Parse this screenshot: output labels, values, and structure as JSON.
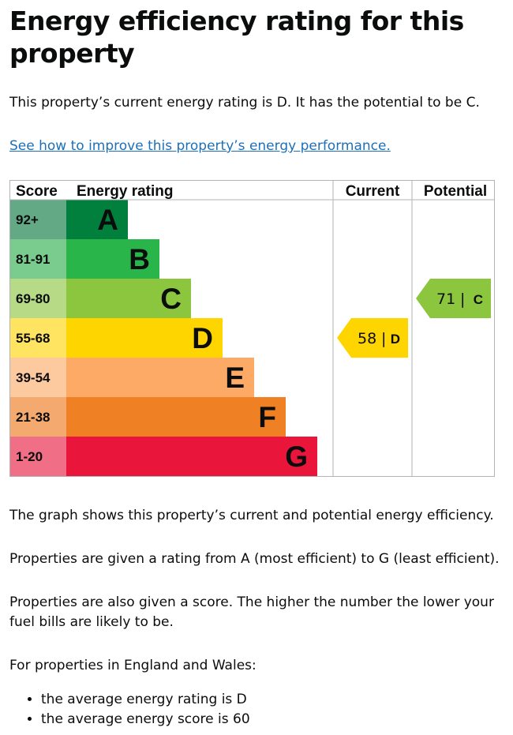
{
  "page": {
    "title": "Energy efficiency rating for this property",
    "intro": "This property’s current energy rating is D. It has the potential to be C.",
    "improve_link": "See how to improve this property’s energy performance.",
    "para1": "The graph shows this property’s current and potential energy efficiency.",
    "para2": "Properties are given a rating from A (most efficient) to G (least efficient).",
    "para3": "Properties are also given a score. The higher the number the lower your fuel bills are likely to be.",
    "para4": "For properties in England and Wales:",
    "bullets": [
      "the average energy rating is D",
      "the average energy score is 60"
    ]
  },
  "chart_data": {
    "type": "table",
    "headers": {
      "score": "Score",
      "rating": "Energy rating",
      "current": "Current",
      "potential": "Potential"
    },
    "bands": [
      {
        "score": "92+",
        "letter": "A",
        "color": "#007f3d",
        "score_bg": "#64a986"
      },
      {
        "score": "81-91",
        "letter": "B",
        "color": "#2ab54b",
        "score_bg": "#79cc8e"
      },
      {
        "score": "69-80",
        "letter": "C",
        "color": "#8cc63e",
        "score_bg": "#b6da86"
      },
      {
        "score": "55-68",
        "letter": "D",
        "color": "#ffd500",
        "score_bg": "#ffe461"
      },
      {
        "score": "39-54",
        "letter": "E",
        "color": "#fcaa65",
        "score_bg": "#fdcaa0"
      },
      {
        "score": "21-38",
        "letter": "F",
        "color": "#ef8023",
        "score_bg": "#f4aa6e"
      },
      {
        "score": "1-20",
        "letter": "G",
        "color": "#e9153b",
        "score_bg": "#f06e86"
      }
    ],
    "current": {
      "score": 58,
      "letter": "D",
      "color": "#ffd500"
    },
    "potential": {
      "score": 71,
      "letter": "C",
      "color": "#8cc63e"
    },
    "separator": "|",
    "grid_color": "#b1b4b6"
  }
}
